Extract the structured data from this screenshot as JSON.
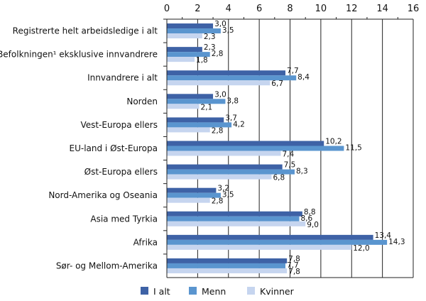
{
  "chart_data": {
    "type": "bar",
    "orientation": "horizontal",
    "categories": [
      "Registrerte helt arbeidsledige i alt",
      "Befolkningen¹ eksklusive innvandrere",
      "Innvandrere i alt",
      "Norden",
      "Vest-Europa ellers",
      "EU-land i Øst-Europa",
      "Øst-Europa ellers",
      "Nord-Amerika og Oseania",
      "Asia med Tyrkia",
      "Afrika",
      "Sør- og Mellom-Amerika"
    ],
    "series": [
      {
        "name": "I alt",
        "color": "#3e62a6",
        "values": [
          3.0,
          2.3,
          7.7,
          3.0,
          3.7,
          10.2,
          7.5,
          3.2,
          8.8,
          13.4,
          7.8
        ]
      },
      {
        "name": "Menn",
        "color": "#5a95cf",
        "values": [
          3.5,
          2.8,
          8.4,
          3.8,
          4.2,
          11.5,
          8.3,
          3.5,
          8.6,
          14.3,
          7.7
        ]
      },
      {
        "name": "Kvinner",
        "color": "#c6d5ef",
        "values": [
          2.3,
          1.8,
          6.7,
          2.1,
          2.8,
          7.4,
          6.8,
          2.8,
          9.0,
          12.0,
          7.8
        ]
      }
    ],
    "xlim": [
      0,
      16
    ],
    "xticks": [
      "0",
      "2",
      "4",
      "6",
      "8",
      "10",
      "12",
      "14",
      "16"
    ],
    "grid": true,
    "axis_position": "top",
    "legend": "bottom",
    "decimal_separator": ","
  }
}
